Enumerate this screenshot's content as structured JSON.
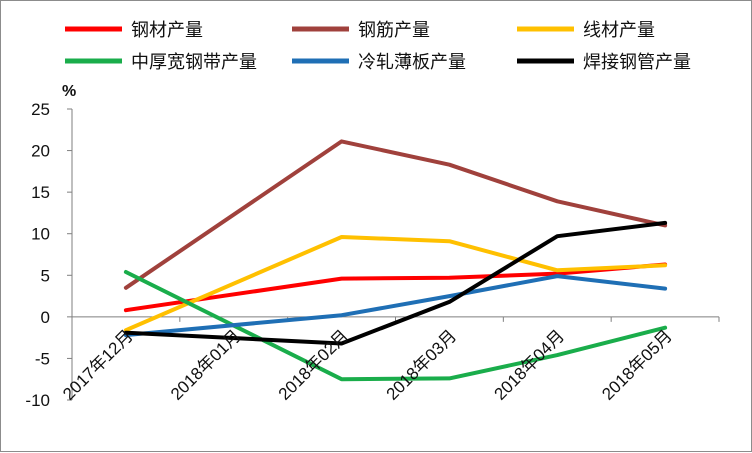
{
  "chart_data": {
    "type": "line",
    "ylabel": "%",
    "ylim": [
      -10,
      25
    ],
    "yticks": [
      -10,
      -5,
      0,
      5,
      10,
      15,
      20,
      25
    ],
    "grid": false,
    "legend_position": "top",
    "x": [
      "2017年12月",
      "2018年01月",
      "2018年02月",
      "2018年03月",
      "2018年04月",
      "2018年05月"
    ],
    "series": [
      {
        "name": "钢材产量",
        "color": "#ff0000",
        "values": [
          0.8,
          null,
          4.6,
          4.7,
          5.2,
          6.3
        ]
      },
      {
        "name": "钢筋产量",
        "color": "#a0413c",
        "values": [
          3.5,
          null,
          21.1,
          18.3,
          13.9,
          11.0
        ]
      },
      {
        "name": "线材产量",
        "color": "#ffc000",
        "values": [
          -1.6,
          null,
          9.6,
          9.1,
          5.6,
          6.2
        ]
      },
      {
        "name": "中厚宽钢带产量",
        "color": "#1aad4b",
        "values": [
          5.4,
          null,
          -7.5,
          -7.4,
          -4.6,
          -1.3
        ]
      },
      {
        "name": "冷轧薄板产量",
        "color": "#1f6fb5",
        "values": [
          -2.2,
          null,
          0.2,
          2.5,
          4.9,
          3.4
        ]
      },
      {
        "name": "焊接钢管产量",
        "color": "#000000",
        "values": [
          -1.9,
          null,
          -3.2,
          1.8,
          9.7,
          11.3
        ]
      }
    ]
  }
}
